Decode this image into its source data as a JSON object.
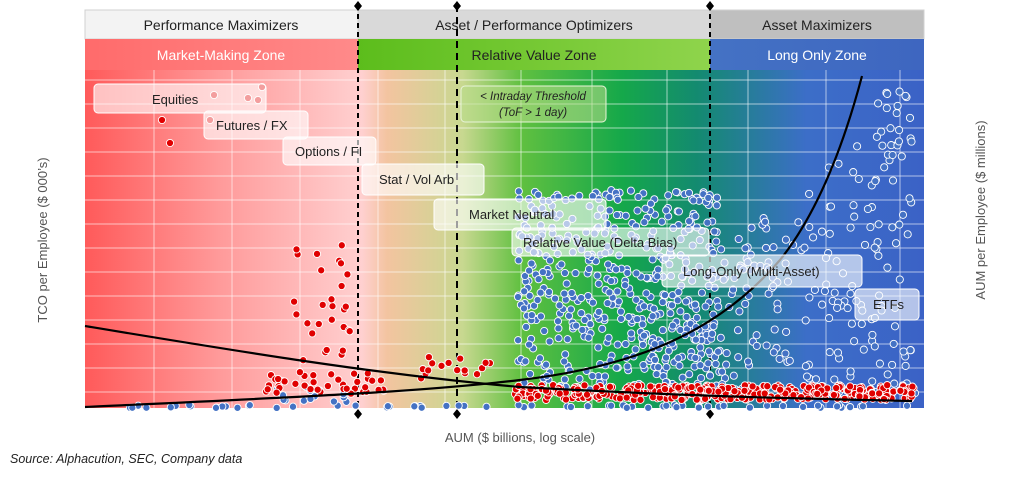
{
  "chart_data": {
    "type": "scatter",
    "xlabel": "AUM ($ billions, log scale)",
    "ylabel_left": "TCO per Employee ($ 000’s)",
    "ylabel_right": "AUM per Employee ($ millions)",
    "source": "Source: Alphacution, SEC, Company data",
    "grid": true,
    "top_bands": [
      {
        "label": "Performance Maximizers",
        "color": "#f2f2f2"
      },
      {
        "label": "Asset / Performance Optimizers",
        "color": "#d9d9d9"
      },
      {
        "label": "Asset Maximizers",
        "color": "#bfbfbf"
      }
    ],
    "zones": [
      {
        "label": "Market-Making Zone",
        "color": "#ff7c80"
      },
      {
        "label": "Relative Value Zone",
        "color": "#7ccc2c"
      },
      {
        "label": "Long Only Zone",
        "color": "#4472c4"
      }
    ],
    "threshold_label": [
      "< Intraday Threshold",
      "(ToF > 1 day)"
    ],
    "strategy_labels": [
      "Equities",
      "Futures / FX",
      "Options / FI",
      "Stat / Vol Arb",
      "Market Neutral",
      "Relative Value (Delta Bias)",
      "Long-Only (Multi-Asset)",
      "ETFs"
    ],
    "series": [
      {
        "color": "#e00000",
        "marker": "TCO per employee (red points)"
      },
      {
        "color": "#4472c4",
        "marker": "AUM per employee (blue points)"
      }
    ]
  }
}
